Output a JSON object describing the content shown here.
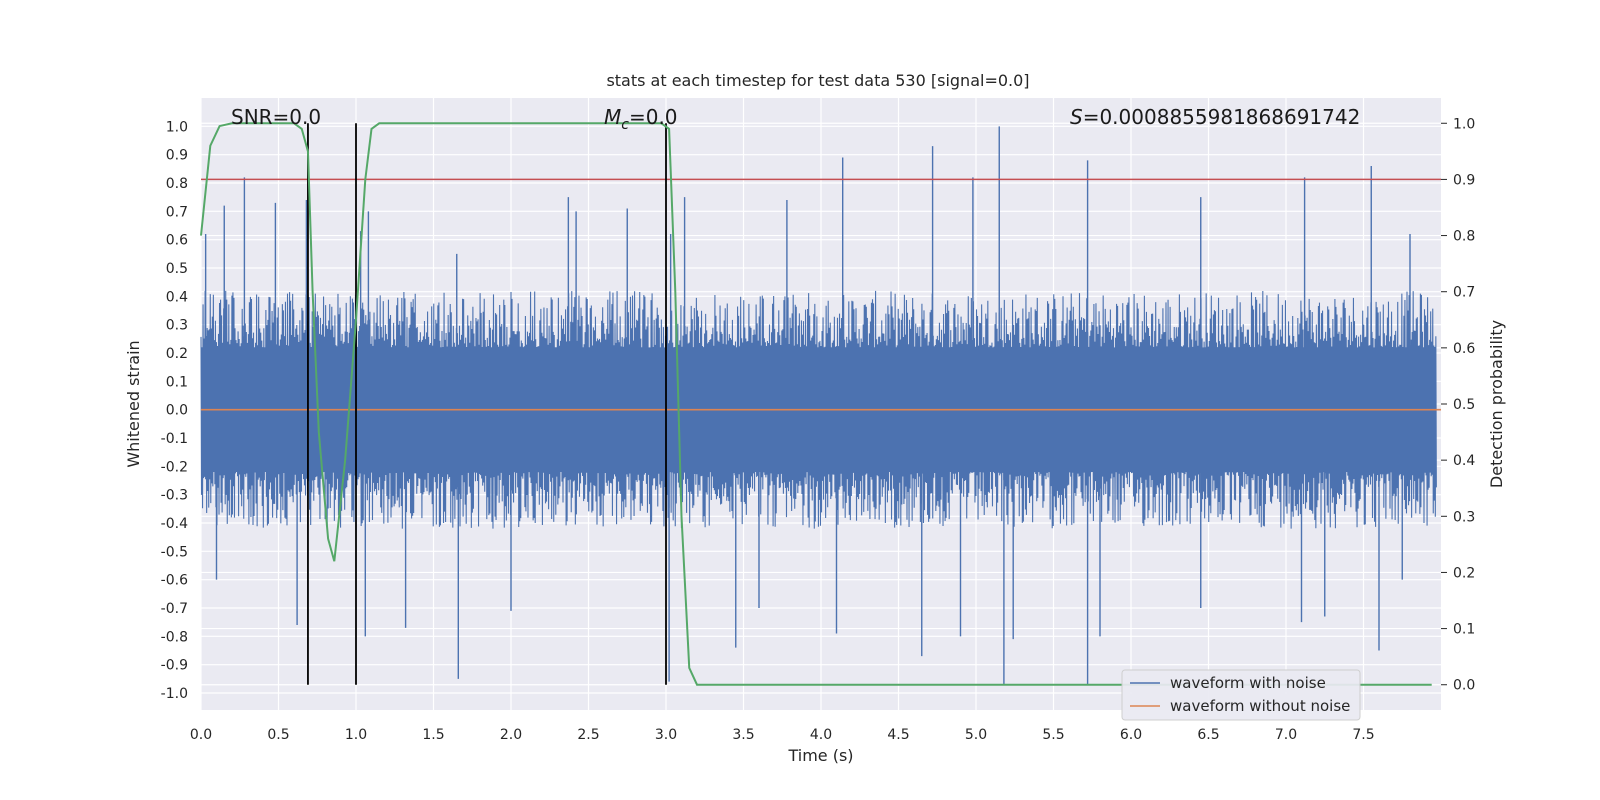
{
  "chart_data": {
    "type": "line",
    "title": "stats at each timestep for test data 530 [signal=0.0]",
    "xlabel": "Time (s)",
    "ylabel": "Whitened strain",
    "y2label": "Detection probability",
    "xlim": [
      0.0,
      8.0
    ],
    "ylim": [
      -1.06,
      1.1
    ],
    "y2lim": [
      -0.045,
      1.045
    ],
    "xticks": [
      0.0,
      0.5,
      1.0,
      1.5,
      2.0,
      2.5,
      3.0,
      3.5,
      4.0,
      4.5,
      5.0,
      5.5,
      6.0,
      6.5,
      7.0,
      7.5
    ],
    "yticks": [
      -1.0,
      -0.9,
      -0.8,
      -0.7,
      -0.6,
      -0.5,
      -0.4,
      -0.3,
      -0.2,
      -0.1,
      0.0,
      0.1,
      0.2,
      0.3,
      0.4,
      0.5,
      0.6,
      0.7,
      0.8,
      0.9,
      1.0
    ],
    "y2ticks": [
      0.0,
      0.1,
      0.2,
      0.3,
      0.4,
      0.5,
      0.6,
      0.7,
      0.8,
      0.9,
      1.0
    ],
    "grid": true,
    "annotations": {
      "snr": "SNR=0.0",
      "mc_symbol": "M",
      "mc_sub": "c",
      "mc_value": "=0.0",
      "s_symbol": "S",
      "s_value": "=0.0008855981868691742"
    },
    "series": [
      {
        "name": "waveform with noise",
        "color": "#4c72b0",
        "axis": "left",
        "envelope": "noise band roughly within ±0.5 with sparse spikes up to ±1.0",
        "spikes_up": [
          [
            0.03,
            0.62
          ],
          [
            0.28,
            0.82
          ],
          [
            0.15,
            0.72
          ],
          [
            0.48,
            0.73
          ],
          [
            0.68,
            0.74
          ],
          [
            1.03,
            0.63
          ],
          [
            1.08,
            0.7
          ],
          [
            1.65,
            0.55
          ],
          [
            2.37,
            0.75
          ],
          [
            2.42,
            0.7
          ],
          [
            2.75,
            0.71
          ],
          [
            3.03,
            0.62
          ],
          [
            3.12,
            0.75
          ],
          [
            3.78,
            0.74
          ],
          [
            4.14,
            0.89
          ],
          [
            4.72,
            0.93
          ],
          [
            4.98,
            0.82
          ],
          [
            5.15,
            1.0
          ],
          [
            5.72,
            0.88
          ],
          [
            6.45,
            0.75
          ],
          [
            7.12,
            0.82
          ],
          [
            7.55,
            0.86
          ],
          [
            7.8,
            0.62
          ]
        ],
        "spikes_down": [
          [
            0.1,
            -0.6
          ],
          [
            0.62,
            -0.76
          ],
          [
            1.06,
            -0.8
          ],
          [
            1.32,
            -0.77
          ],
          [
            1.66,
            -0.95
          ],
          [
            2.0,
            -0.71
          ],
          [
            3.02,
            -0.96
          ],
          [
            3.45,
            -0.84
          ],
          [
            3.6,
            -0.7
          ],
          [
            4.1,
            -0.79
          ],
          [
            4.65,
            -0.87
          ],
          [
            4.9,
            -0.8
          ],
          [
            5.18,
            -0.97
          ],
          [
            5.24,
            -0.81
          ],
          [
            5.72,
            -0.97
          ],
          [
            5.8,
            -0.8
          ],
          [
            6.45,
            -0.7
          ],
          [
            7.1,
            -0.75
          ],
          [
            7.25,
            -0.73
          ],
          [
            7.6,
            -0.85
          ],
          [
            7.75,
            -0.6
          ]
        ]
      },
      {
        "name": "waveform without noise",
        "color": "#dd8452",
        "axis": "left",
        "x": [
          0.0,
          8.0
        ],
        "y": [
          0.0,
          0.0
        ]
      },
      {
        "name": "detection probability",
        "color": "#55a868",
        "axis": "right",
        "x": [
          0.0,
          0.06,
          0.12,
          0.2,
          0.35,
          0.6,
          0.65,
          0.69,
          0.72,
          0.76,
          0.82,
          0.86,
          0.93,
          1.0,
          1.06,
          1.1,
          1.15,
          1.3,
          2.0,
          2.97,
          3.02,
          3.06,
          3.1,
          3.15,
          3.2,
          3.3,
          4.0,
          5.0,
          6.0,
          7.0,
          7.94
        ],
        "y": [
          0.8,
          0.96,
          0.995,
          1.0,
          1.0,
          1.0,
          0.99,
          0.95,
          0.7,
          0.45,
          0.26,
          0.22,
          0.4,
          0.65,
          0.9,
          0.99,
          1.0,
          1.0,
          1.0,
          1.0,
          0.99,
          0.7,
          0.3,
          0.03,
          0.0,
          0.0,
          0.0,
          0.0,
          0.0,
          0.0,
          0.0
        ]
      }
    ],
    "hlines": [
      {
        "y2": 0.9,
        "color": "#c44e52"
      }
    ],
    "vlines": [
      {
        "x": 0.69,
        "color": "#000000"
      },
      {
        "x": 1.0,
        "color": "#000000"
      },
      {
        "x": 3.0,
        "color": "#000000"
      }
    ],
    "legend": {
      "location": "lower-right",
      "entries": [
        "waveform with noise",
        "waveform without noise"
      ]
    }
  }
}
